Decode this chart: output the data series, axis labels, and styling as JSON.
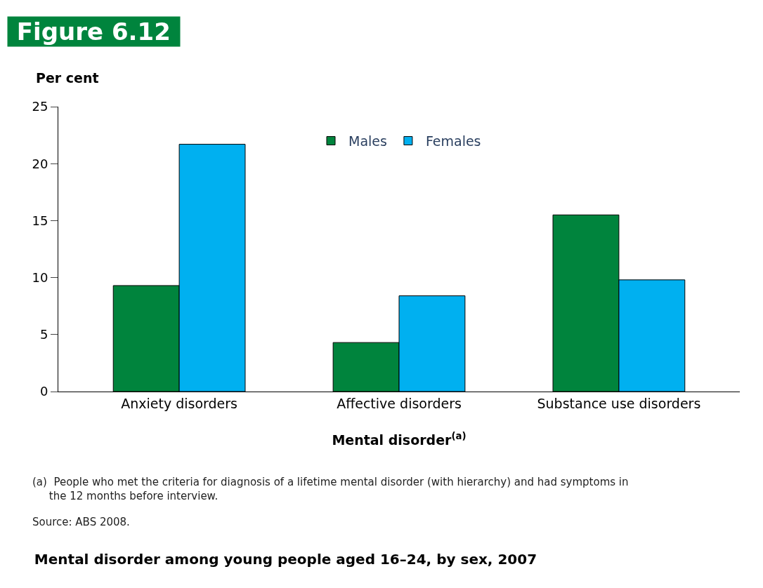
{
  "chart_data": {
    "type": "bar",
    "title": "Mental disorder among young people aged 16–24, by sex, 2007",
    "xlabel": "Mental disorder$^{(a)}$",
    "ylabel": "Per cent",
    "categories": [
      "Anxiety disorders",
      "Affective disorders",
      "Substance use disorders"
    ],
    "series": [
      {
        "name": "Males",
        "color": "#00843d",
        "values": [
          9.3,
          4.3,
          15.5
        ]
      },
      {
        "name": "Females",
        "color": "#00b0f0",
        "values": [
          21.7,
          8.4,
          9.8
        ]
      }
    ],
    "ylim": [
      0,
      25
    ],
    "yticks": [
      0,
      5,
      10,
      15,
      20,
      25
    ],
    "legend": "top",
    "annotations": [
      "Figure 6.12",
      "(a)  People who met the criteria for diagnosis of a lifetime mental disorder (with hierarchy) and had symptoms in the 12 months before interview.",
      "Source: ABS 2008."
    ]
  }
}
